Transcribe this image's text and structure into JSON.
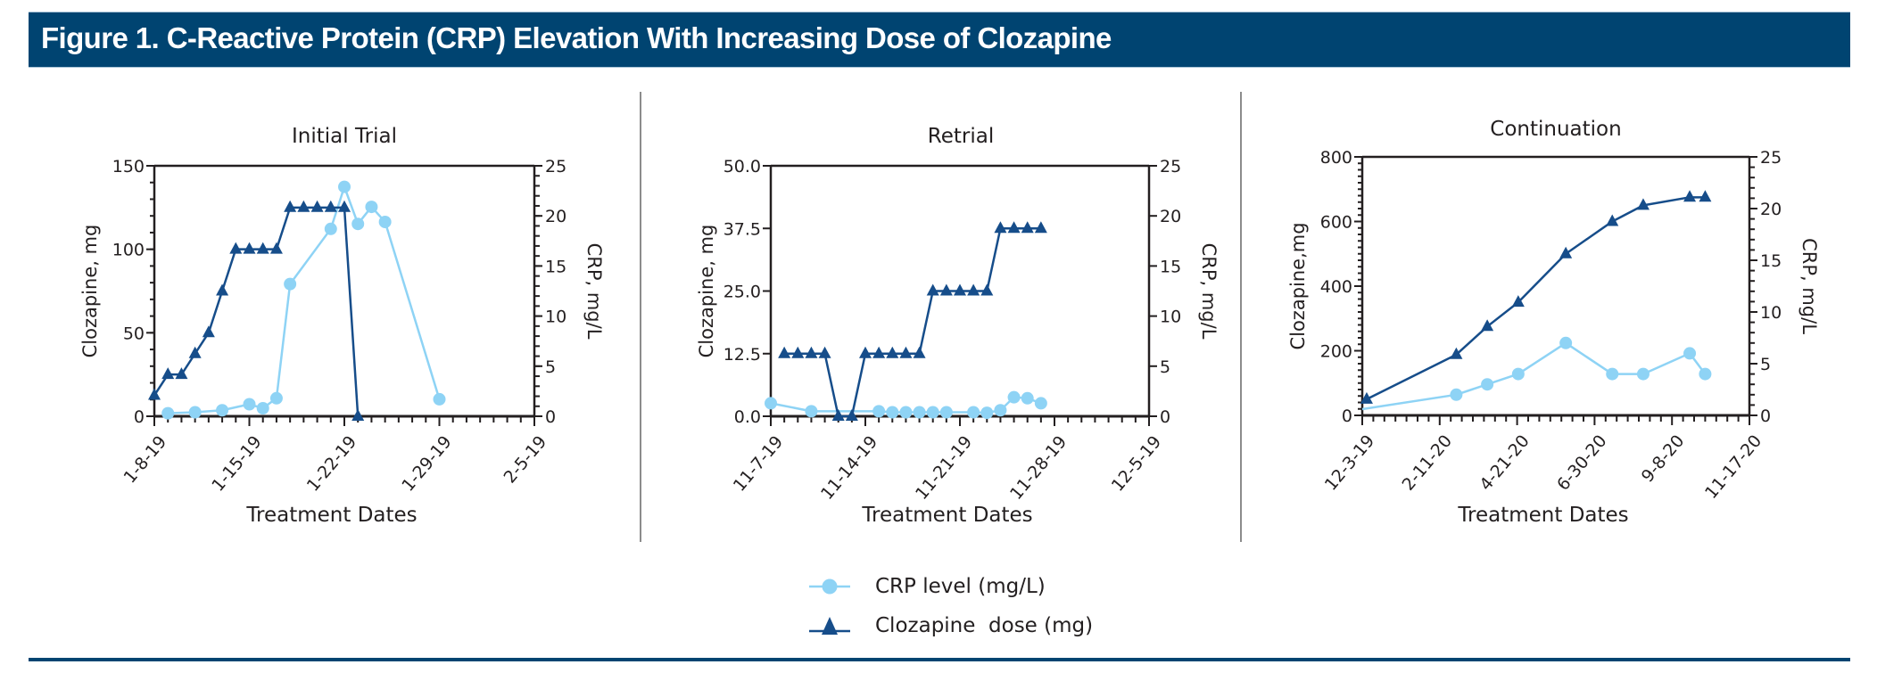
{
  "header": {
    "title": "Figure 1. C-Reactive Protein (CRP) Elevation With Increasing Dose of Clozapine"
  },
  "colors": {
    "header_bg": "#004471",
    "crp": "#8ed3f5",
    "dose": "#164d8a",
    "axis": "#231f20",
    "divider": "#8c8c8c"
  },
  "legend": [
    {
      "label": "CRP level (mg/L)",
      "marker": "circle-icon",
      "series": "crp"
    },
    {
      "label": "Clozapine  dose (mg)",
      "marker": "triangle-icon",
      "series": "dose"
    }
  ],
  "chart_data": [
    {
      "type": "line",
      "title": "Initial Trial",
      "xlabel": "Treatment Dates",
      "ylabel": "Clozapine, mg",
      "y2label": "CRP, mg/L",
      "x_unit": "days since 1-8-19",
      "xlim": [
        0,
        28
      ],
      "x_ticks": [
        0,
        7,
        14,
        21,
        28
      ],
      "x_tick_labels": [
        "1-8-19",
        "1-15-19",
        "1-22-19",
        "1-29-19",
        "2-5-19"
      ],
      "x_minor_step": 1,
      "ylim": [
        0,
        150
      ],
      "y_ticks": [
        0,
        50,
        100,
        150
      ],
      "y_tick_labels": [
        "0",
        "50",
        "100",
        "150"
      ],
      "y_minor_step": 10,
      "y2lim": [
        0,
        25
      ],
      "y2_ticks": [
        0,
        5,
        10,
        15,
        20,
        25
      ],
      "y2_tick_labels": [
        "0",
        "5",
        "10",
        "15",
        "20",
        "25"
      ],
      "y2_minor_step": 1,
      "series": [
        {
          "name": "Clozapine dose (mg)",
          "axis": "left",
          "marker": "triangle",
          "x": [
            0,
            1,
            2,
            3,
            4,
            5,
            6,
            7,
            8,
            9,
            10,
            11,
            12,
            13,
            14,
            15
          ],
          "values": [
            12.5,
            25,
            25,
            37.5,
            50,
            75,
            100,
            100,
            100,
            100,
            125,
            125,
            125,
            125,
            125,
            0
          ]
        },
        {
          "name": "CRP level (mg/L)",
          "axis": "right",
          "marker": "circle",
          "x": [
            1,
            3,
            5,
            7,
            8,
            9,
            10,
            13,
            14,
            15,
            16,
            17,
            21
          ],
          "values": [
            0.3,
            0.4,
            0.6,
            1.2,
            0.8,
            1.8,
            13.2,
            18.7,
            22.9,
            19.2,
            20.9,
            19.4,
            1.7
          ]
        }
      ]
    },
    {
      "type": "line",
      "title": "Retrial",
      "xlabel": "Treatment Dates",
      "ylabel": "Clozapine, mg",
      "y2label": "CRP, mg/L",
      "x_unit": "days since 11-7-19",
      "xlim": [
        0,
        28
      ],
      "x_ticks": [
        0,
        7,
        14,
        21,
        28
      ],
      "x_tick_labels": [
        "11-7-19",
        "11-14-19",
        "11-21-19",
        "11-28-19",
        "12-5-19"
      ],
      "x_minor_step": 1,
      "ylim": [
        0,
        50
      ],
      "y_ticks": [
        0,
        12.5,
        25,
        37.5,
        50
      ],
      "y_tick_labels": [
        "0.0",
        "12.5",
        "25.0",
        "37.5",
        "50.0"
      ],
      "y_minor_step": null,
      "y2lim": [
        0,
        25
      ],
      "y2_ticks": [
        0,
        5,
        10,
        15,
        20,
        25
      ],
      "y2_tick_labels": [
        "0",
        "5",
        "10",
        "15",
        "20",
        "25"
      ],
      "y2_minor_step": null,
      "series": [
        {
          "name": "Clozapine dose (mg)",
          "axis": "left",
          "marker": "triangle",
          "x": [
            1,
            2,
            3,
            4,
            5,
            6,
            7,
            8,
            9,
            10,
            11,
            12,
            13,
            14,
            15,
            16,
            17,
            18,
            19,
            20
          ],
          "values": [
            12.5,
            12.5,
            12.5,
            12.5,
            0,
            0,
            12.5,
            12.5,
            12.5,
            12.5,
            12.5,
            25,
            25,
            25,
            25,
            25,
            37.5,
            37.5,
            37.5,
            37.5
          ]
        },
        {
          "name": "CRP level (mg/L)",
          "axis": "right",
          "marker": "circle",
          "x": [
            0,
            3,
            8,
            9,
            10,
            11,
            12,
            13,
            15,
            16,
            17,
            18,
            19,
            20
          ],
          "values": [
            1.3,
            0.5,
            0.5,
            0.4,
            0.4,
            0.4,
            0.4,
            0.4,
            0.4,
            0.35,
            0.6,
            1.9,
            1.8,
            1.3
          ]
        }
      ]
    },
    {
      "type": "line",
      "title": "Continuation",
      "xlabel": "Treatment Dates",
      "ylabel": "Clozapine,mg",
      "y2label": "CRP, mg/L",
      "x_unit": "days since 12-3-19",
      "xlim": [
        0,
        350
      ],
      "x_ticks": [
        0,
        70,
        140,
        210,
        280,
        350
      ],
      "x_tick_labels": [
        "12-3-19",
        "2-11-20",
        "4-21-20",
        "6-30-20",
        "9-8-20",
        "11-17-20"
      ],
      "x_minor_step": 10,
      "ylim": [
        0,
        800
      ],
      "y_ticks": [
        0,
        200,
        400,
        600,
        800
      ],
      "y_tick_labels": [
        "0",
        "200",
        "400",
        "600",
        "800"
      ],
      "y_minor_step": 20,
      "y2lim": [
        0,
        25
      ],
      "y2_ticks": [
        0,
        5,
        10,
        15,
        20,
        25
      ],
      "y2_tick_labels": [
        "0",
        "5",
        "10",
        "15",
        "20",
        "25"
      ],
      "y2_minor_step": 1,
      "series": [
        {
          "name": "Clozapine dose (mg)",
          "axis": "left",
          "marker": "triangle",
          "x": [
            4,
            85,
            113,
            141,
            184,
            226,
            254,
            296,
            310
          ],
          "values": [
            50,
            188,
            275,
            350,
            500,
            600,
            650,
            675,
            675
          ]
        },
        {
          "name": "CRP level (mg/L)",
          "axis": "right",
          "marker": "circle",
          "marker_from_index": 1,
          "x": [
            0,
            85,
            113,
            141,
            184,
            226,
            254,
            296,
            310
          ],
          "values": [
            0.6,
            2,
            3,
            4,
            7,
            4,
            4,
            6,
            4
          ]
        }
      ]
    }
  ]
}
